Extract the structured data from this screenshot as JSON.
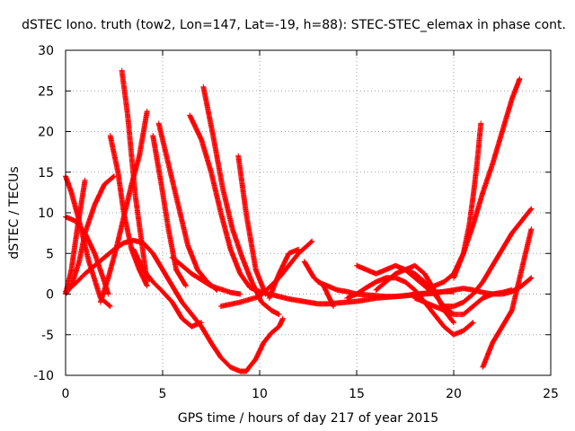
{
  "chart_data": {
    "type": "line",
    "title": "dSTEC Iono. truth (tow2, Lon=147, Lat=-19, h=88): STEC-STEC_elemax in phase cont.",
    "xlabel": "GPS time / hours of day 217 of year 2015",
    "ylabel": "dSTEC  / TECUs",
    "xlim": [
      0,
      25
    ],
    "ylim": [
      -10,
      30
    ],
    "xticks": [
      "0",
      "5",
      "10",
      "15",
      "20",
      "25"
    ],
    "yticks": [
      "-10",
      "-5",
      "0",
      "5",
      "10",
      "15",
      "20",
      "25",
      "30"
    ],
    "grid": true,
    "marker": "+",
    "series_color": "#ff0000",
    "series": [
      {
        "x": [
          0.0,
          0.5,
          1.0,
          1.5,
          2.0,
          2.5,
          3.0,
          3.5,
          4.0,
          4.5,
          5.0,
          5.5,
          6.0,
          6.5,
          7.0,
          7.5,
          8.0,
          8.5,
          9.0,
          9.3
        ],
        "y": [
          0.3,
          1.3,
          2.5,
          3.5,
          4.5,
          5.5,
          6.3,
          6.6,
          6.3,
          5.0,
          3.0,
          1.0,
          -1.0,
          -2.5,
          -4.0,
          -6.0,
          -7.8,
          -9.0,
          -9.5,
          -9.5
        ]
      },
      {
        "x": [
          9.3,
          9.8,
          10.2,
          10.6,
          11.0,
          11.2
        ],
        "y": [
          -9.5,
          -8.0,
          -6.0,
          -4.8,
          -4.0,
          -3.0
        ]
      },
      {
        "x": [
          0.0,
          0.3,
          0.7,
          1.2,
          1.8,
          2.3
        ],
        "y": [
          14.5,
          12.5,
          9.0,
          4.0,
          -0.5,
          -1.5
        ]
      },
      {
        "x": [
          0.0,
          0.5,
          1.0,
          1.5,
          2.0,
          2.2
        ],
        "y": [
          9.5,
          9.0,
          7.5,
          5.0,
          1.5,
          0.0
        ]
      },
      {
        "x": [
          0.0,
          0.3,
          0.7,
          1.0,
          1.5,
          2.0,
          2.5
        ],
        "y": [
          0.0,
          1.0,
          4.0,
          7.5,
          11.0,
          13.5,
          14.5
        ]
      },
      {
        "x": [
          0.0,
          0.3,
          0.6,
          1.0
        ],
        "y": [
          0.0,
          3.0,
          8.0,
          14.0
        ]
      },
      {
        "x": [
          2.3,
          2.7,
          3.0,
          3.4,
          3.8,
          4.2
        ],
        "y": [
          19.5,
          15.0,
          10.0,
          5.5,
          3.0,
          1.0
        ]
      },
      {
        "x": [
          2.9,
          3.2,
          3.6,
          4.0,
          4.2
        ],
        "y": [
          27.5,
          22.0,
          12.0,
          5.0,
          1.5
        ]
      },
      {
        "x": [
          1.8,
          2.2,
          2.6,
          3.0,
          3.4,
          3.8,
          4.2
        ],
        "y": [
          -1.0,
          2.0,
          5.5,
          9.5,
          13.5,
          17.0,
          22.5
        ]
      },
      {
        "x": [
          3.5,
          4.0,
          4.5,
          5.0,
          5.5,
          6.0,
          6.5,
          7.0
        ],
        "y": [
          5.5,
          3.0,
          1.5,
          0.3,
          -1.0,
          -3.0,
          -4.0,
          -3.5
        ]
      },
      {
        "x": [
          4.8,
          5.3,
          5.8,
          6.3,
          6.8,
          7.3,
          7.8
        ],
        "y": [
          21.0,
          16.0,
          11.0,
          6.0,
          3.0,
          1.5,
          0.5
        ]
      },
      {
        "x": [
          4.5,
          4.9,
          5.3,
          5.7,
          6.2
        ],
        "y": [
          19.5,
          14.0,
          8.0,
          3.0,
          1.0
        ]
      },
      {
        "x": [
          6.4,
          7.0,
          7.5,
          8.0,
          8.5,
          9.0,
          9.5,
          10.0
        ],
        "y": [
          22.0,
          19.0,
          15.0,
          10.0,
          5.5,
          2.5,
          0.8,
          0.3
        ]
      },
      {
        "x": [
          7.1,
          7.6,
          8.1,
          8.6,
          9.1,
          9.6,
          10.1,
          10.6,
          11.0
        ],
        "y": [
          25.5,
          19.5,
          13.0,
          8.0,
          4.5,
          1.5,
          -1.0,
          -2.0,
          -2.5
        ]
      },
      {
        "x": [
          8.9,
          9.3,
          9.8,
          10.3
        ],
        "y": [
          17.0,
          10.0,
          3.0,
          0.0
        ]
      },
      {
        "x": [
          5.5,
          6.5,
          7.5,
          8.5,
          9.0
        ],
        "y": [
          4.5,
          2.5,
          1.0,
          0.2,
          0.0
        ]
      },
      {
        "x": [
          10.0,
          10.5,
          11.0,
          11.5,
          12.0,
          12.5,
          13.0,
          13.5,
          14.0,
          14.5,
          15.0,
          15.5,
          16.0,
          16.5,
          17.0,
          17.5,
          18.0,
          18.5,
          19.0,
          19.5,
          20.0
        ],
        "y": [
          0.3,
          0.0,
          -0.3,
          -0.6,
          -0.8,
          -1.0,
          -1.2,
          -1.2,
          -1.1,
          -1.0,
          -0.9,
          -0.7,
          -0.5,
          -0.4,
          -0.3,
          -0.2,
          0.0,
          0.1,
          0.2,
          0.3,
          0.3
        ]
      },
      {
        "x": [
          8.0,
          9.0,
          10.0,
          11.0,
          12.0,
          12.7
        ],
        "y": [
          -1.5,
          -1.0,
          -0.3,
          2.0,
          5.0,
          6.5
        ]
      },
      {
        "x": [
          10.5,
          11.0,
          11.5,
          12.0
        ],
        "y": [
          -0.5,
          2.5,
          5.0,
          5.5
        ]
      },
      {
        "x": [
          12.3,
          12.8,
          13.3,
          13.8
        ],
        "y": [
          4.0,
          2.0,
          1.0,
          -1.5
        ]
      },
      {
        "x": [
          13.0,
          13.5,
          14.0,
          14.5,
          15.0,
          15.5,
          16.0,
          16.5,
          17.0,
          17.5,
          18.0,
          18.5,
          19.0,
          19.5,
          20.0,
          20.5,
          21.0,
          21.5,
          22.0,
          22.5,
          23.0
        ],
        "y": [
          1.5,
          1.0,
          0.5,
          0.3,
          0.0,
          -0.1,
          -0.2,
          -0.3,
          -0.3,
          -0.2,
          -0.1,
          0.0,
          0.1,
          0.3,
          0.5,
          0.7,
          0.5,
          0.2,
          0.0,
          0.2,
          0.5
        ]
      },
      {
        "x": [
          14.5,
          15.0,
          15.5,
          16.0,
          16.5,
          17.0,
          17.5,
          18.0,
          18.5,
          19.0,
          19.5,
          20.0,
          20.5,
          21.0
        ],
        "y": [
          -0.5,
          0.0,
          0.8,
          1.5,
          2.0,
          2.0,
          1.5,
          0.5,
          -1.0,
          -2.5,
          -4.0,
          -5.0,
          -4.5,
          -3.5
        ]
      },
      {
        "x": [
          15.0,
          15.5,
          16.0,
          16.5,
          17.0,
          17.5,
          18.0,
          18.5,
          19.0
        ],
        "y": [
          3.5,
          3.0,
          2.5,
          3.0,
          3.5,
          3.0,
          2.0,
          1.0,
          0.0
        ]
      },
      {
        "x": [
          16.0,
          16.5,
          17.0,
          17.5,
          18.0,
          18.5,
          19.0,
          19.5,
          20.0
        ],
        "y": [
          0.5,
          1.5,
          2.5,
          3.0,
          2.5,
          1.5,
          0.0,
          -1.5,
          -2.5
        ]
      },
      {
        "x": [
          17.5,
          18.0,
          18.5,
          19.0,
          19.5,
          20.0
        ],
        "y": [
          3.0,
          3.5,
          2.5,
          0.5,
          -2.0,
          -3.5
        ]
      },
      {
        "x": [
          18.0,
          18.5,
          19.0,
          19.5,
          20.0,
          20.5,
          21.0,
          21.5,
          22.0,
          22.5,
          23.0,
          23.5,
          24.0
        ],
        "y": [
          -0.5,
          -1.0,
          -1.5,
          -2.0,
          -2.5,
          -2.5,
          -1.5,
          -0.5,
          0.0,
          0.0,
          0.3,
          1.0,
          2.0
        ]
      },
      {
        "x": [
          19.5,
          20.0,
          20.5,
          21.0,
          21.5,
          22.0,
          22.5,
          23.0,
          23.5,
          24.0
        ],
        "y": [
          -1.5,
          -1.5,
          -1.0,
          0.0,
          1.5,
          3.5,
          5.5,
          7.5,
          9.0,
          10.5
        ]
      },
      {
        "x": [
          19.0,
          19.5,
          20.0,
          20.5,
          21.0,
          21.5,
          22.0,
          22.5,
          23.0,
          23.4
        ],
        "y": [
          1.0,
          1.5,
          2.5,
          5.0,
          8.5,
          12.5,
          16.0,
          20.0,
          24.0,
          26.5
        ]
      },
      {
        "x": [
          20.0,
          20.5,
          20.8,
          21.0,
          21.2,
          21.4
        ],
        "y": [
          2.0,
          5.0,
          8.5,
          12.0,
          16.0,
          21.0
        ]
      },
      {
        "x": [
          21.5,
          22.0,
          22.5,
          23.0,
          23.5,
          24.0
        ],
        "y": [
          -9.0,
          -6.0,
          -4.0,
          -2.0,
          3.0,
          8.0
        ]
      }
    ]
  }
}
